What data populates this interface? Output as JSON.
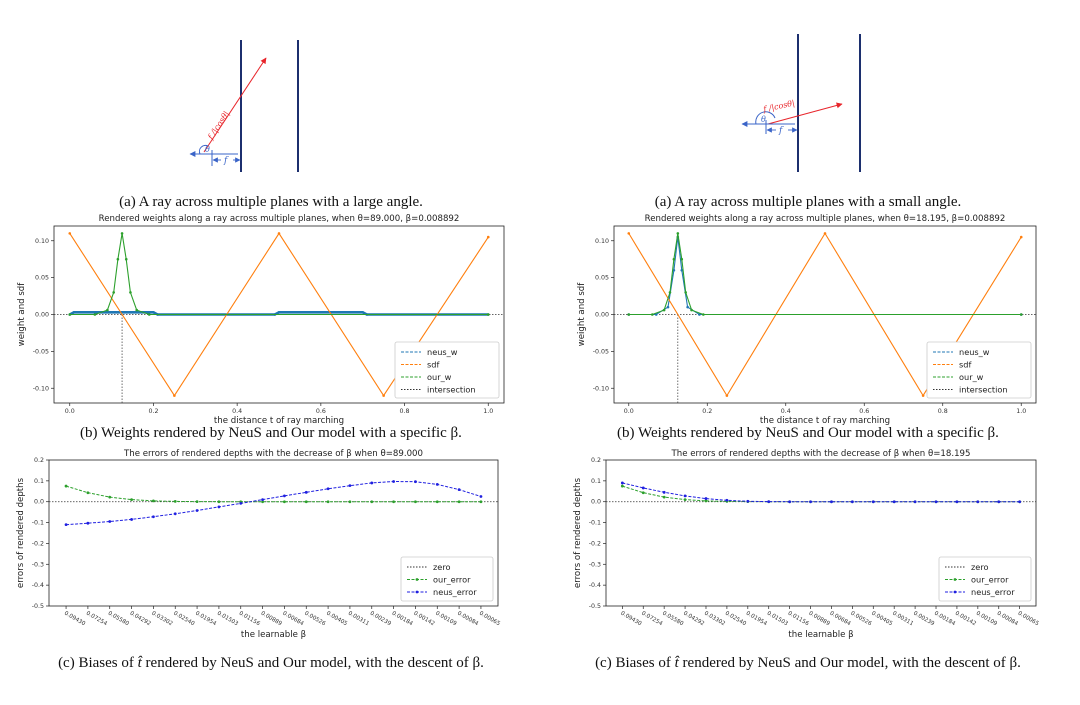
{
  "diagrams": [
    {
      "caption": "(a) A ray across multiple planes with a large angle.",
      "ray_label": "f /|cosθ|",
      "angle_label": "θ",
      "f_label": "f"
    },
    {
      "caption": "(a) A ray across multiple planes with a small angle.",
      "ray_label": "f /|cosθ|",
      "angle_label": "θ",
      "f_label": "f"
    }
  ],
  "captions": {
    "b": "(b) Weights rendered by NeuS and Our model with a specific β.",
    "c_prefix": "(c) Biases of ",
    "c_var": "t̂",
    "c_suffix": " rendered by NeuS and Our model, with the descent of β."
  },
  "colors": {
    "neus": "#1f77b4",
    "sdf": "#ff7f0e",
    "ours": "#2ca02c",
    "neus_error": "#1f1fe0",
    "ray": "#e8252b",
    "plane": "#1c2f6e",
    "diagram_arrow": "#3a64c8"
  },
  "chart_data": [
    {
      "type": "line",
      "title": "Rendered weights along a ray across multiple planes, when θ=89.000, β=0.008892",
      "xlabel": "the distance t of ray marching",
      "ylabel": "weight and sdf",
      "xlim": [
        0,
        1
      ],
      "ylim": [
        -0.12,
        0.12
      ],
      "xticks": [
        "0.0",
        "0.2",
        "0.4",
        "0.6",
        "0.8",
        "1.0"
      ],
      "yticks": [
        "0.10",
        "0.05",
        "0.00",
        "-0.05",
        "-0.10"
      ],
      "intersection_x": 0.125,
      "legend": [
        "neus_w",
        "sdf",
        "our_w",
        "intersection"
      ],
      "legend_position": "lower-right",
      "series": [
        {
          "name": "neus_w",
          "x": [
            0.0,
            0.01,
            0.2,
            0.21,
            0.49,
            0.5,
            0.7,
            0.71,
            1.0
          ],
          "y": [
            0.0,
            0.003,
            0.003,
            0.0,
            0.0,
            0.003,
            0.003,
            0.0,
            0.0
          ]
        },
        {
          "name": "sdf",
          "x": [
            0.0,
            0.25,
            0.5,
            0.75,
            1.0
          ],
          "y": [
            0.11,
            -0.11,
            0.11,
            -0.11,
            0.105
          ]
        },
        {
          "name": "our_w",
          "x": [
            0.0,
            0.06,
            0.09,
            0.105,
            0.115,
            0.125,
            0.135,
            0.145,
            0.16,
            0.19,
            1.0
          ],
          "y": [
            0.0,
            0.0,
            0.006,
            0.03,
            0.075,
            0.11,
            0.075,
            0.03,
            0.006,
            0.0,
            0.0
          ]
        }
      ]
    },
    {
      "type": "line",
      "title": "Rendered weights along a ray across multiple planes, when θ=18.195, β=0.008892",
      "xlabel": "the distance t of ray marching",
      "ylabel": "weight and sdf",
      "xlim": [
        0,
        1
      ],
      "ylim": [
        -0.12,
        0.12
      ],
      "xticks": [
        "0.0",
        "0.2",
        "0.4",
        "0.6",
        "0.8",
        "1.0"
      ],
      "yticks": [
        "0.10",
        "0.05",
        "0.00",
        "-0.05",
        "-0.10"
      ],
      "intersection_x": 0.125,
      "legend": [
        "neus_w",
        "sdf",
        "our_w",
        "intersection"
      ],
      "legend_position": "lower-right",
      "series": [
        {
          "name": "neus_w",
          "x": [
            0.0,
            0.07,
            0.1,
            0.115,
            0.125,
            0.135,
            0.15,
            0.18,
            1.0
          ],
          "y": [
            0.0,
            0.0,
            0.01,
            0.06,
            0.105,
            0.06,
            0.01,
            0.0,
            0.0
          ]
        },
        {
          "name": "sdf",
          "x": [
            0.0,
            0.25,
            0.5,
            0.75,
            1.0
          ],
          "y": [
            0.11,
            -0.11,
            0.11,
            -0.11,
            0.105
          ]
        },
        {
          "name": "our_w",
          "x": [
            0.0,
            0.06,
            0.09,
            0.105,
            0.115,
            0.125,
            0.135,
            0.145,
            0.16,
            0.19,
            1.0
          ],
          "y": [
            0.0,
            0.0,
            0.006,
            0.03,
            0.075,
            0.11,
            0.075,
            0.03,
            0.006,
            0.0,
            0.0
          ]
        }
      ]
    },
    {
      "type": "line",
      "title": "The errors of rendered depths with the decrease of β when θ=89.000",
      "xlabel": "the learnable β",
      "ylabel": "errors of rendered depths",
      "ylim": [
        -0.5,
        0.2
      ],
      "yticks": [
        "0.2",
        "0.1",
        "0.0",
        "-0.1",
        "-0.2",
        "-0.3",
        "-0.4",
        "-0.5"
      ],
      "categories": [
        "0.09430",
        "0.07254",
        "0.05580",
        "0.04292",
        "0.03302",
        "0.02540",
        "0.01954",
        "0.01503",
        "0.01156",
        "0.00889",
        "0.00684",
        "0.00526",
        "0.00405",
        "0.00311",
        "0.00239",
        "0.00184",
        "0.00142",
        "0.00109",
        "0.00084",
        "0.00065"
      ],
      "legend": [
        "zero",
        "our_error",
        "neus_error"
      ],
      "legend_position": "lower-right",
      "series": [
        {
          "name": "our_error",
          "values": [
            0.075,
            0.043,
            0.022,
            0.01,
            0.004,
            0.0015,
            0.0005,
            0.0,
            0.0,
            0.0,
            0.0,
            0.0,
            0.0,
            0.0,
            0.0,
            0.0,
            0.0,
            0.0,
            0.0,
            0.0
          ]
        },
        {
          "name": "neus_error",
          "values": [
            -0.11,
            -0.103,
            -0.095,
            -0.085,
            -0.072,
            -0.058,
            -0.042,
            -0.025,
            -0.008,
            0.01,
            0.028,
            0.045,
            0.062,
            0.077,
            0.09,
            0.097,
            0.096,
            0.083,
            0.058,
            0.025
          ]
        }
      ]
    },
    {
      "type": "line",
      "title": "The errors of rendered depths with the decrease of β when θ=18.195",
      "xlabel": "the learnable β",
      "ylabel": "errors of rendered depths",
      "ylim": [
        -0.5,
        0.2
      ],
      "yticks": [
        "0.2",
        "0.1",
        "0.0",
        "-0.1",
        "-0.2",
        "-0.3",
        "-0.4",
        "-0.5"
      ],
      "categories": [
        "0.09430",
        "0.07254",
        "0.05580",
        "0.04292",
        "0.03302",
        "0.02540",
        "0.01954",
        "0.01503",
        "0.01156",
        "0.00889",
        "0.00684",
        "0.00526",
        "0.00405",
        "0.00311",
        "0.00239",
        "0.00184",
        "0.00142",
        "0.00109",
        "0.00084",
        "0.00065"
      ],
      "legend": [
        "zero",
        "our_error",
        "neus_error"
      ],
      "legend_position": "lower-right",
      "series": [
        {
          "name": "our_error",
          "values": [
            0.075,
            0.043,
            0.022,
            0.01,
            0.004,
            0.0015,
            0.0005,
            0.0,
            0.0,
            0.0,
            0.0,
            0.0,
            0.0,
            0.0,
            0.0,
            0.0,
            0.0,
            0.0,
            0.0,
            0.0
          ]
        },
        {
          "name": "neus_error",
          "values": [
            0.09,
            0.066,
            0.045,
            0.028,
            0.015,
            0.007,
            0.002,
            0.0005,
            0.0,
            0.0,
            0.0,
            0.0,
            0.0,
            0.0,
            0.0,
            0.0,
            0.0,
            0.0,
            0.0,
            0.0
          ]
        }
      ]
    }
  ]
}
